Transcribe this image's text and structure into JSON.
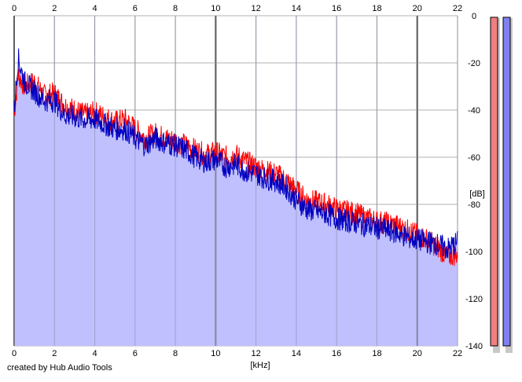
{
  "chart_data": {
    "type": "area",
    "title": "",
    "xlabel": "[kHz]",
    "ylabel": "[dB]",
    "xlim": [
      0,
      22
    ],
    "ylim": [
      -140,
      0
    ],
    "x_ticks": [
      0,
      2,
      4,
      6,
      8,
      10,
      12,
      14,
      16,
      18,
      20,
      22
    ],
    "y_ticks": [
      0,
      -20,
      -40,
      -60,
      -80,
      -100,
      -120,
      -140
    ],
    "x_tick_labels": [
      "0",
      "2",
      "4",
      "6",
      "8",
      "10",
      "12",
      "14",
      "16",
      "18",
      "20",
      "22"
    ],
    "y_tick_labels": [
      "0",
      "-20",
      "-40",
      "-60",
      "-80",
      "-100",
      "-120",
      "-140"
    ],
    "grid": true,
    "x": [
      0,
      0.2,
      0.5,
      1,
      1.5,
      2,
      2.5,
      3,
      3.5,
      4,
      4.5,
      5,
      5.5,
      6,
      6.5,
      7,
      7.5,
      8,
      8.5,
      9,
      9.5,
      10,
      10.5,
      11,
      11.5,
      12,
      12.5,
      13,
      13.5,
      14,
      14.5,
      15,
      15.5,
      16,
      16.5,
      17,
      17.5,
      18,
      18.5,
      19,
      19.5,
      20,
      20.5,
      21,
      21.5,
      22
    ],
    "series": [
      {
        "color": "#ff0000",
        "values": [
          -42,
          -25,
          -30,
          -28,
          -34,
          -33,
          -38,
          -40,
          -42,
          -41,
          -43,
          -45,
          -44,
          -48,
          -52,
          -50,
          -52,
          -53,
          -55,
          -57,
          -59,
          -58,
          -60,
          -59,
          -62,
          -64,
          -66,
          -67,
          -70,
          -74,
          -78,
          -79,
          -80,
          -82,
          -83,
          -84,
          -86,
          -87,
          -88,
          -89,
          -91,
          -93,
          -95,
          -98,
          -102,
          -101
        ]
      },
      {
        "color": "#0000c0",
        "values": [
          -40,
          -18,
          -28,
          -32,
          -36,
          -36,
          -42,
          -43,
          -44,
          -44,
          -46,
          -48,
          -48,
          -52,
          -55,
          -52,
          -54,
          -55,
          -57,
          -60,
          -62,
          -61,
          -64,
          -63,
          -66,
          -67,
          -69,
          -70,
          -73,
          -78,
          -82,
          -83,
          -84,
          -86,
          -87,
          -88,
          -89,
          -90,
          -91,
          -92,
          -94,
          -95,
          -96,
          -97,
          -99,
          -96
        ]
      }
    ],
    "fill_color": "#c0c0ff",
    "level_meters": [
      {
        "color": "#f08080",
        "value_db": 0
      },
      {
        "color": "#8080f0",
        "value_db": 0
      }
    ]
  },
  "footer": {
    "credit": "created by Hub Audio Tools"
  }
}
